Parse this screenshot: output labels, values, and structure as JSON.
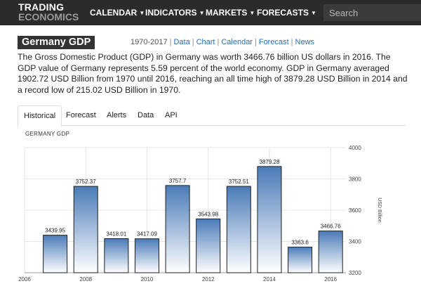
{
  "header": {
    "logo_line1": "TRADING",
    "logo_line2": "ECONOMICS",
    "nav": [
      {
        "label": "CALENDAR"
      },
      {
        "label": "INDICATORS"
      },
      {
        "label": "MARKETS"
      },
      {
        "label": "FORECASTS"
      }
    ],
    "search_placeholder": "Search"
  },
  "page": {
    "title": "Germany GDP",
    "range_label": "1970-2017",
    "links": [
      "Data",
      "Chart",
      "Calendar",
      "Forecast",
      "News"
    ],
    "description": "The Gross Domestic Product (GDP) in Germany was worth 3466.76 billion US dollars in 2016. The GDP value of Germany represents 5.59 percent of the world economy. GDP in Germany averaged 1902.72 USD Billion from 1970 until 2016, reaching an all time high of 3879.28 USD Billion in 2014 and a record low of 215.02 USD Billion in 1970."
  },
  "tabs": [
    {
      "label": "Historical",
      "active": true
    },
    {
      "label": "Forecast",
      "active": false
    },
    {
      "label": "Alerts",
      "active": false
    },
    {
      "label": "Data",
      "active": false
    },
    {
      "label": "API",
      "active": false
    }
  ],
  "chart_data": {
    "type": "bar",
    "title": "GERMANY GDP",
    "ylabel": "USD Billion",
    "x": [
      2007,
      2008,
      2009,
      2010,
      2011,
      2012,
      2013,
      2014,
      2015,
      2016
    ],
    "values": [
      3439.95,
      3752.37,
      3418.01,
      3417.09,
      3757.7,
      3543.98,
      3752.51,
      3879.28,
      3363.6,
      3466.76
    ],
    "data_labels": [
      "3439.95",
      "3752.37",
      "3418.01",
      "3417.09",
      "3757.7",
      "3543.98",
      "3752.51",
      "3879.28",
      "3363.6",
      "3466.76"
    ],
    "x_ticks": [
      "2006",
      "2008",
      "2010",
      "2012",
      "2014",
      "2016"
    ],
    "x_tick_values": [
      2006,
      2008,
      2010,
      2012,
      2014,
      2016
    ],
    "y_ticks": [
      "4000",
      "3800",
      "3600",
      "3400",
      "3200"
    ],
    "y_tick_values": [
      4000,
      3800,
      3600,
      3400,
      3200
    ],
    "xlim": [
      2006,
      2016.5
    ],
    "ylim": [
      3200,
      4000
    ],
    "grid": true,
    "y_axis_side": "right",
    "bar_color_top": "#4a7bb8",
    "bar_color_bottom": "#ffffff",
    "bar_border": "#1f1f1f"
  }
}
